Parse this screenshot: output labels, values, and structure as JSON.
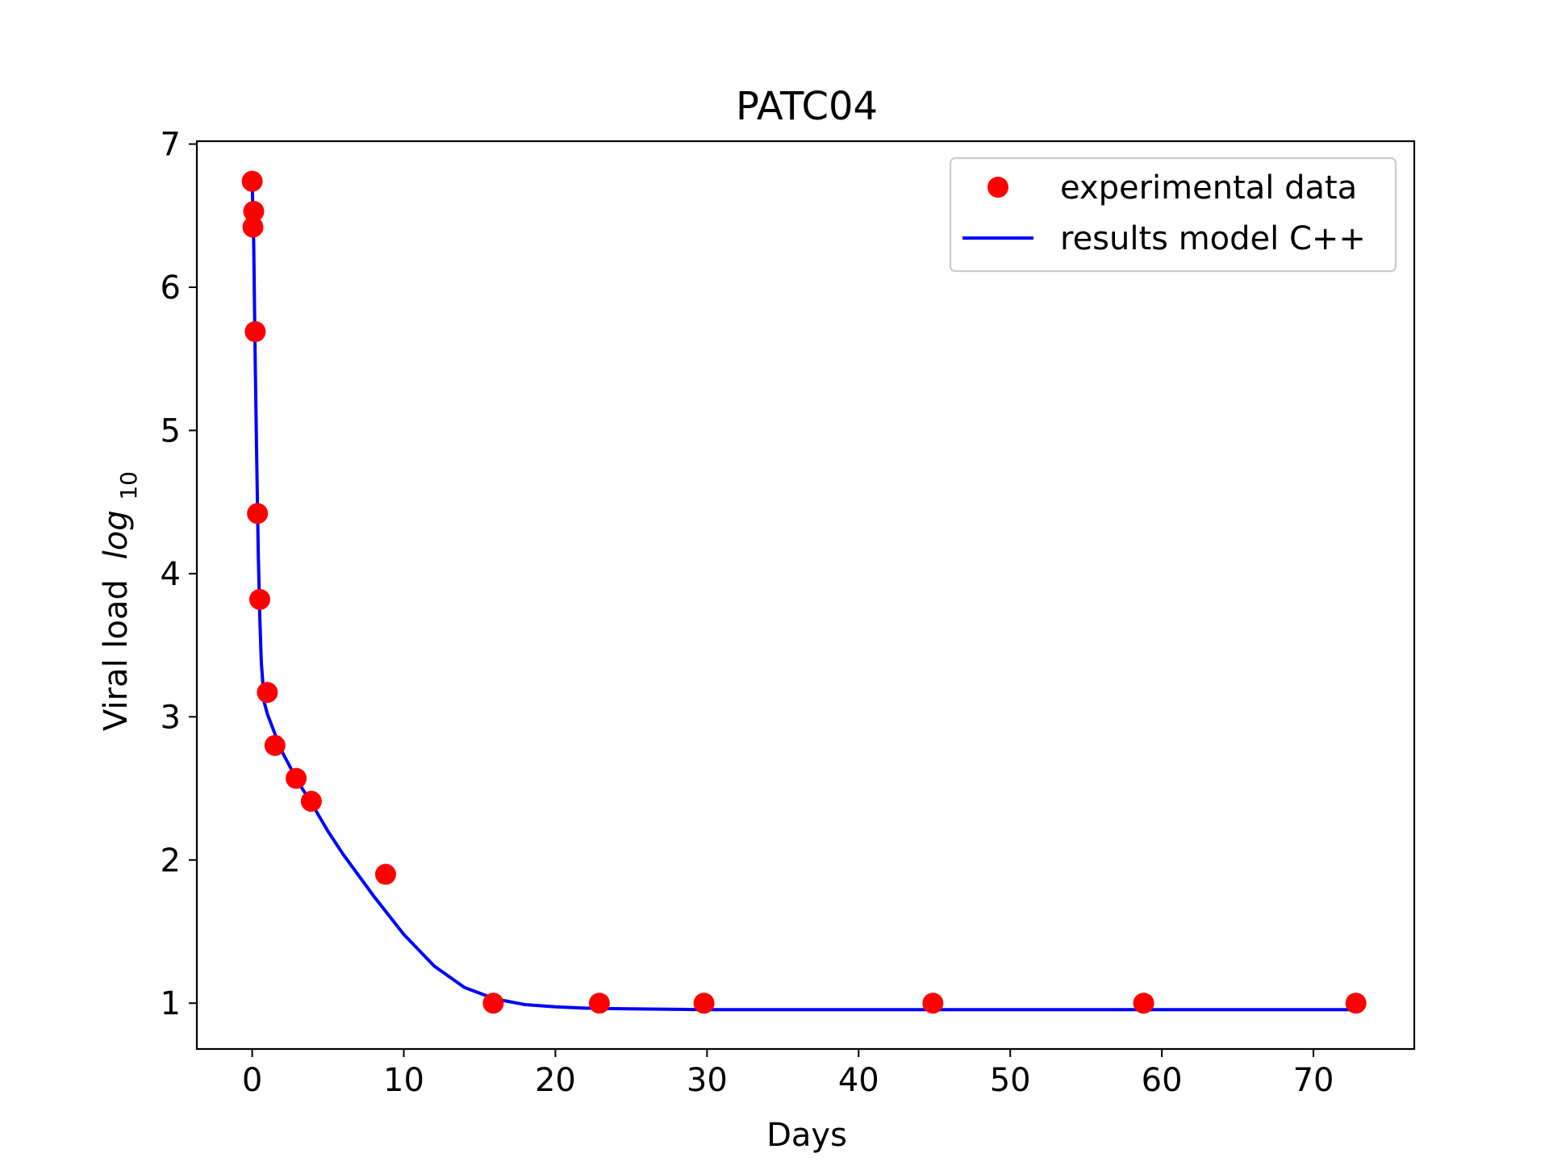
{
  "chart_data": {
    "type": "scatter",
    "title": "PATC04",
    "xlabel": "Days",
    "ylabel": "Viral load",
    "ylabel_math": "log",
    "ylabel_sub": "10",
    "xlim": [
      -3.65,
      76.65
    ],
    "ylim": [
      0.68,
      7.02
    ],
    "xticks": [
      0,
      10,
      20,
      30,
      40,
      50,
      60,
      70
    ],
    "yticks": [
      1,
      2,
      3,
      4,
      5,
      6,
      7
    ],
    "grid": false,
    "legend_position": "top-right",
    "colors": {
      "scatter": "#ff0000",
      "line": "#0000ff"
    },
    "series": [
      {
        "name": "experimental data",
        "type": "scatter",
        "x": [
          0.0,
          0.1,
          0.05,
          0.2,
          0.35,
          0.5,
          1.0,
          1.5,
          2.9,
          3.9,
          8.8,
          15.9,
          22.9,
          29.8,
          44.9,
          58.8,
          72.8
        ],
        "y": [
          6.74,
          6.53,
          6.42,
          5.69,
          4.42,
          3.82,
          3.17,
          2.8,
          2.57,
          2.41,
          1.9,
          1.0,
          1.0,
          1.0,
          1.0,
          1.0,
          1.0
        ]
      },
      {
        "name": "results model C++",
        "type": "line",
        "x": [
          0.0,
          0.1,
          0.2,
          0.3,
          0.4,
          0.5,
          0.6,
          0.8,
          1.0,
          1.5,
          2.0,
          3.0,
          4.0,
          5.0,
          6.0,
          8.0,
          10.0,
          12.0,
          14.0,
          16.0,
          18.0,
          20.0,
          22.0,
          25.0,
          30.0,
          40.0,
          50.0,
          60.0,
          72.8
        ],
        "y": [
          6.74,
          6.3,
          5.5,
          4.8,
          4.15,
          3.7,
          3.38,
          3.1,
          3.02,
          2.88,
          2.75,
          2.55,
          2.38,
          2.2,
          2.04,
          1.75,
          1.48,
          1.26,
          1.11,
          1.03,
          0.99,
          0.975,
          0.965,
          0.96,
          0.955,
          0.955,
          0.955,
          0.955,
          0.955
        ]
      }
    ]
  }
}
